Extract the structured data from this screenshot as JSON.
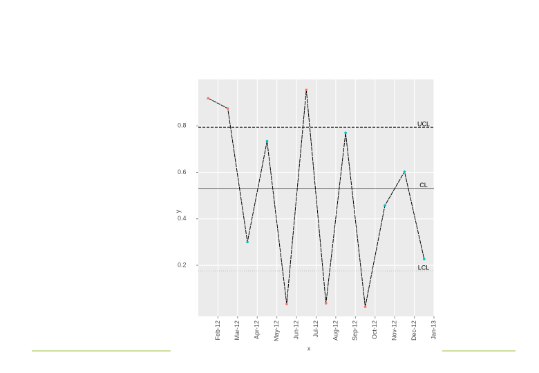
{
  "chart_data": {
    "type": "line",
    "x_label": "x",
    "y_label": "y",
    "x": [
      "2012-01",
      "2012-02",
      "2012-03",
      "2012-04",
      "2012-05",
      "2012-06",
      "2012-07",
      "2012-08",
      "2012-09",
      "2012-10",
      "2012-11",
      "2012-12"
    ],
    "values": [
      0.919,
      0.875,
      0.3,
      0.734,
      0.033,
      0.955,
      0.036,
      0.77,
      0.021,
      0.457,
      0.603,
      0.227
    ],
    "point_colors": [
      "#f8766d",
      "#f8766d",
      "#00bfc4",
      "#00bfc4",
      "#f8766d",
      "#f8766d",
      "#f8766d",
      "#00bfc4",
      "#f8766d",
      "#00bfc4",
      "#00bfc4",
      "#00bfc4"
    ],
    "line_color": "#000000",
    "xlim": [
      "2012-01",
      "2013-01"
    ],
    "xticks": [
      {
        "value": "2012-02",
        "label": "Feb-12"
      },
      {
        "value": "2012-03",
        "label": "Mar-12"
      },
      {
        "value": "2012-04",
        "label": "Apr-12"
      },
      {
        "value": "2012-05",
        "label": "May-12"
      },
      {
        "value": "2012-06",
        "label": "Jun-12"
      },
      {
        "value": "2012-07",
        "label": "Jul-12"
      },
      {
        "value": "2012-08",
        "label": "Aug-12"
      },
      {
        "value": "2012-09",
        "label": "Sep-12"
      },
      {
        "value": "2012-10",
        "label": "Oct-12"
      },
      {
        "value": "2012-11",
        "label": "Nov-12"
      },
      {
        "value": "2012-12",
        "label": "Dec-12"
      },
      {
        "value": "2013-01",
        "label": "Jan-13"
      }
    ],
    "ylim": [
      -0.02,
      1.0
    ],
    "yticks": [
      0.2,
      0.4,
      0.6,
      0.8
    ],
    "grid": true,
    "limits": [
      {
        "label": "UCL",
        "value": 0.794,
        "style": "dashed"
      },
      {
        "label": "CL",
        "value": 0.531,
        "style": "solid"
      },
      {
        "label": "LCL",
        "value": 0.176,
        "style": "dotted"
      }
    ]
  }
}
